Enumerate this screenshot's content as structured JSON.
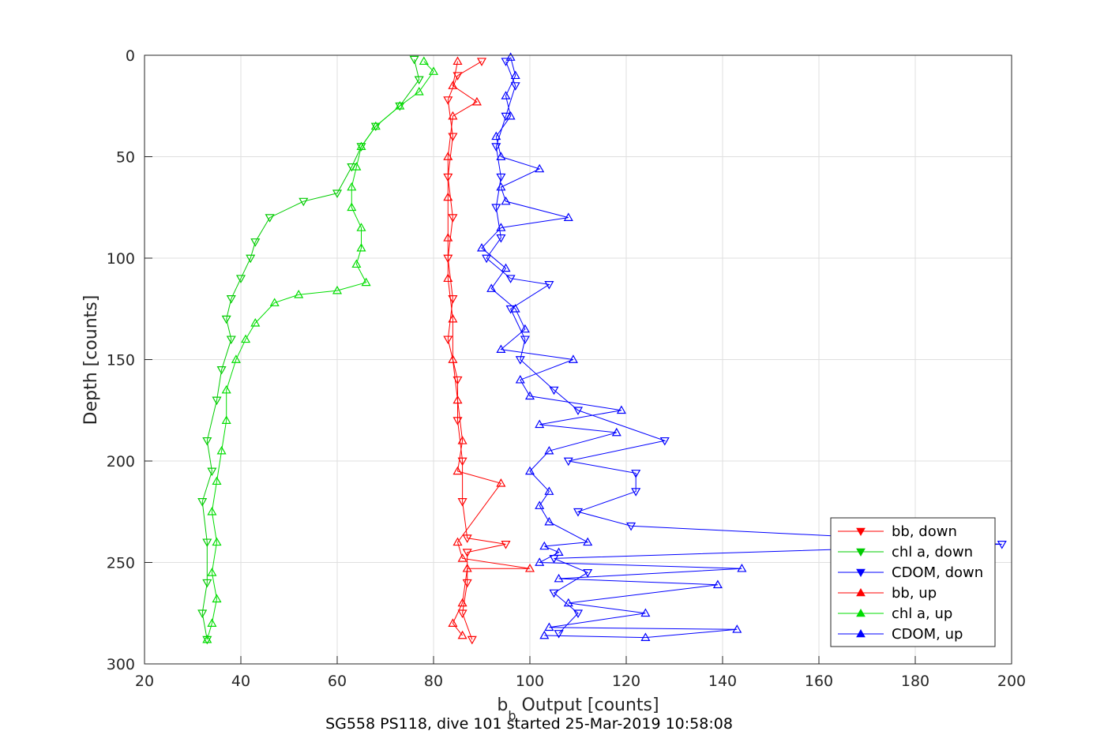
{
  "chart_data": {
    "type": "scatter",
    "xlabel": "b",
    "xlabel_subscript": "b",
    "xlabel_rest": " Output [counts]",
    "ylabel": "Depth [counts]",
    "caption": "SG558 PS118, dive 101 started 25-Mar-2019 10:58:08",
    "xlim": [
      20,
      200
    ],
    "ylim": [
      0,
      300
    ],
    "y_reversed": true,
    "grid": true,
    "xticks": [
      "20",
      "40",
      "60",
      "80",
      "100",
      "120",
      "140",
      "160",
      "180",
      "200"
    ],
    "yticks": [
      "0",
      "50",
      "100",
      "150",
      "200",
      "250",
      "300"
    ],
    "legend_placement": "bottom-right",
    "series": [
      {
        "name": "bb, down",
        "color": "#ff0000",
        "marker": "triangle-down",
        "points": [
          [
            90,
            3
          ],
          [
            85,
            10
          ],
          [
            83,
            22
          ],
          [
            84,
            40
          ],
          [
            83,
            60
          ],
          [
            84,
            80
          ],
          [
            83,
            100
          ],
          [
            84,
            120
          ],
          [
            83,
            140
          ],
          [
            85,
            160
          ],
          [
            85,
            180
          ],
          [
            86,
            200
          ],
          [
            86,
            220
          ],
          [
            87,
            238
          ],
          [
            95,
            241
          ],
          [
            87,
            245
          ],
          [
            87,
            260
          ],
          [
            86,
            275
          ],
          [
            88,
            288
          ]
        ]
      },
      {
        "name": "chl a, down",
        "color": "#00cc00",
        "marker": "triangle-down",
        "points": [
          [
            76,
            2
          ],
          [
            77,
            12
          ],
          [
            73,
            25
          ],
          [
            68,
            35
          ],
          [
            65,
            45
          ],
          [
            63,
            55
          ],
          [
            60,
            68
          ],
          [
            53,
            72
          ],
          [
            46,
            80
          ],
          [
            43,
            92
          ],
          [
            42,
            100
          ],
          [
            40,
            110
          ],
          [
            38,
            120
          ],
          [
            37,
            130
          ],
          [
            38,
            140
          ],
          [
            36,
            155
          ],
          [
            35,
            170
          ],
          [
            33,
            190
          ],
          [
            34,
            205
          ],
          [
            32,
            220
          ],
          [
            33,
            240
          ],
          [
            33,
            260
          ],
          [
            32,
            275
          ],
          [
            33,
            288
          ]
        ]
      },
      {
        "name": "CDOM, down",
        "color": "#0000ff",
        "marker": "triangle-down",
        "points": [
          [
            95,
            3
          ],
          [
            97,
            15
          ],
          [
            95,
            30
          ],
          [
            93,
            45
          ],
          [
            94,
            60
          ],
          [
            93,
            75
          ],
          [
            94,
            90
          ],
          [
            91,
            100
          ],
          [
            96,
            110
          ],
          [
            104,
            113
          ],
          [
            96,
            125
          ],
          [
            99,
            140
          ],
          [
            98,
            150
          ],
          [
            105,
            165
          ],
          [
            110,
            175
          ],
          [
            128,
            190
          ],
          [
            108,
            200
          ],
          [
            122,
            206
          ],
          [
            122,
            215
          ],
          [
            110,
            225
          ],
          [
            121,
            232
          ],
          [
            198,
            241
          ],
          [
            105,
            248
          ],
          [
            112,
            255
          ],
          [
            105,
            265
          ],
          [
            110,
            275
          ],
          [
            106,
            285
          ]
        ]
      },
      {
        "name": "bb, up",
        "color": "#ff0000",
        "marker": "triangle-up",
        "points": [
          [
            86,
            286
          ],
          [
            84,
            280
          ],
          [
            86,
            270
          ],
          [
            87,
            253
          ],
          [
            100,
            253
          ],
          [
            86,
            248
          ],
          [
            85,
            240
          ],
          [
            94,
            211
          ],
          [
            85,
            205
          ],
          [
            86,
            190
          ],
          [
            85,
            170
          ],
          [
            84,
            150
          ],
          [
            84,
            130
          ],
          [
            83,
            110
          ],
          [
            83,
            90
          ],
          [
            83,
            70
          ],
          [
            83,
            50
          ],
          [
            84,
            30
          ],
          [
            89,
            23
          ],
          [
            84,
            15
          ],
          [
            85,
            3
          ]
        ]
      },
      {
        "name": "chl a, up",
        "color": "#00dd00",
        "marker": "triangle-up",
        "points": [
          [
            33,
            288
          ],
          [
            34,
            280
          ],
          [
            35,
            268
          ],
          [
            34,
            255
          ],
          [
            35,
            240
          ],
          [
            34,
            225
          ],
          [
            35,
            210
          ],
          [
            36,
            195
          ],
          [
            37,
            180
          ],
          [
            37,
            165
          ],
          [
            39,
            150
          ],
          [
            41,
            140
          ],
          [
            43,
            132
          ],
          [
            47,
            122
          ],
          [
            52,
            118
          ],
          [
            60,
            116
          ],
          [
            66,
            112
          ],
          [
            64,
            103
          ],
          [
            65,
            95
          ],
          [
            65,
            85
          ],
          [
            63,
            75
          ],
          [
            63,
            65
          ],
          [
            64,
            55
          ],
          [
            65,
            45
          ],
          [
            68,
            35
          ],
          [
            73,
            25
          ],
          [
            77,
            18
          ],
          [
            80,
            8
          ],
          [
            78,
            3
          ]
        ]
      },
      {
        "name": "CDOM, up",
        "color": "#0000ff",
        "marker": "triangle-up",
        "points": [
          [
            103,
            286
          ],
          [
            124,
            287
          ],
          [
            143,
            283
          ],
          [
            104,
            282
          ],
          [
            124,
            275
          ],
          [
            108,
            270
          ],
          [
            139,
            261
          ],
          [
            106,
            258
          ],
          [
            144,
            253
          ],
          [
            102,
            250
          ],
          [
            106,
            245
          ],
          [
            103,
            242
          ],
          [
            112,
            240
          ],
          [
            104,
            230
          ],
          [
            102,
            222
          ],
          [
            104,
            215
          ],
          [
            100,
            205
          ],
          [
            104,
            195
          ],
          [
            118,
            186
          ],
          [
            102,
            182
          ],
          [
            119,
            175
          ],
          [
            100,
            168
          ],
          [
            98,
            160
          ],
          [
            109,
            150
          ],
          [
            94,
            145
          ],
          [
            99,
            135
          ],
          [
            97,
            125
          ],
          [
            92,
            115
          ],
          [
            95,
            105
          ],
          [
            90,
            95
          ],
          [
            94,
            85
          ],
          [
            108,
            80
          ],
          [
            95,
            72
          ],
          [
            94,
            65
          ],
          [
            102,
            56
          ],
          [
            94,
            50
          ],
          [
            93,
            40
          ],
          [
            96,
            30
          ],
          [
            95,
            20
          ],
          [
            97,
            10
          ],
          [
            96,
            1
          ]
        ]
      }
    ]
  }
}
